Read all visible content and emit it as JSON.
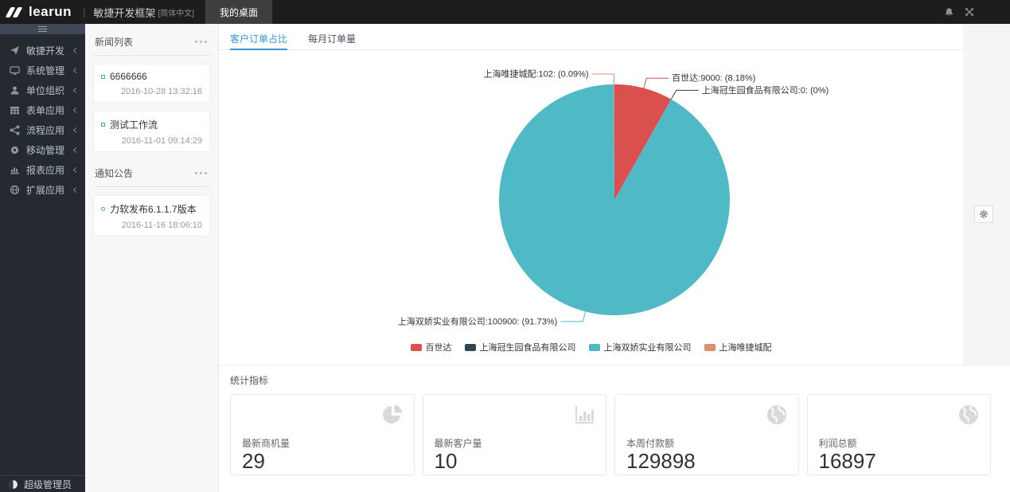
{
  "topbar": {
    "logo_text": "learun",
    "divider": "|",
    "app_title": "敏捷开发框架",
    "lang_suffix": "[简体中文]",
    "desktop_tab": "我的桌面"
  },
  "sidebar": {
    "items": [
      {
        "label": "敏捷开发",
        "icon": "send-icon"
      },
      {
        "label": "系统管理",
        "icon": "desktop-icon"
      },
      {
        "label": "单位组织",
        "icon": "organization-icon"
      },
      {
        "label": "表单应用",
        "icon": "form-icon"
      },
      {
        "label": "流程应用",
        "icon": "workflow-icon"
      },
      {
        "label": "移动管理",
        "icon": "mobile-icon"
      },
      {
        "label": "报表应用",
        "icon": "report-icon"
      },
      {
        "label": "扩展应用",
        "icon": "extension-icon"
      }
    ],
    "user": "超级管理员"
  },
  "news": {
    "section1_title": "新闻列表",
    "items": [
      {
        "title": "6666666",
        "time": "2016-10-28 13:32:16"
      },
      {
        "title": "测试工作流",
        "time": "2016-11-01 09:14:29"
      }
    ],
    "section2_title": "通知公告",
    "notices": [
      {
        "title": "力软发布6.1.1.7版本",
        "time": "2016-11-16 18:06:10"
      }
    ]
  },
  "main": {
    "tabs": [
      {
        "label": "客户订单占比",
        "active": true
      },
      {
        "label": "每月订单量",
        "active": false
      }
    ],
    "stats_title": "统计指标",
    "stats": [
      {
        "label": "最新商机量",
        "value": "29",
        "icon": "pie-chart-icon"
      },
      {
        "label": "最新客户量",
        "value": "10",
        "icon": "bar-chart-icon"
      },
      {
        "label": "本周付款额",
        "value": "129898",
        "icon": "globe-icon"
      },
      {
        "label": "利润总额",
        "value": "16897",
        "icon": "globe-icon"
      }
    ]
  },
  "chart_data": {
    "type": "pie",
    "title": "客户订单占比",
    "legend_position": "bottom",
    "label_format": "name:value: (pct)",
    "series": [
      {
        "name": "百世达",
        "value": 9000,
        "pct": "8.18%",
        "color": "#d9504f"
      },
      {
        "name": "上海冠生园食品有限公司",
        "value": 0,
        "pct": "0%",
        "color": "#2f4554"
      },
      {
        "name": "上海双娇实业有限公司",
        "value": 100900,
        "pct": "91.73%",
        "color": "#4fb9c6"
      },
      {
        "name": "上海唯捷城配",
        "value": 102,
        "pct": "0.09%",
        "color": "#e08d6d"
      }
    ]
  },
  "colors": {
    "accent_blue": "#3598dc",
    "topbar_bg": "#1d1d1d",
    "sidebar_bg": "#252a31"
  }
}
